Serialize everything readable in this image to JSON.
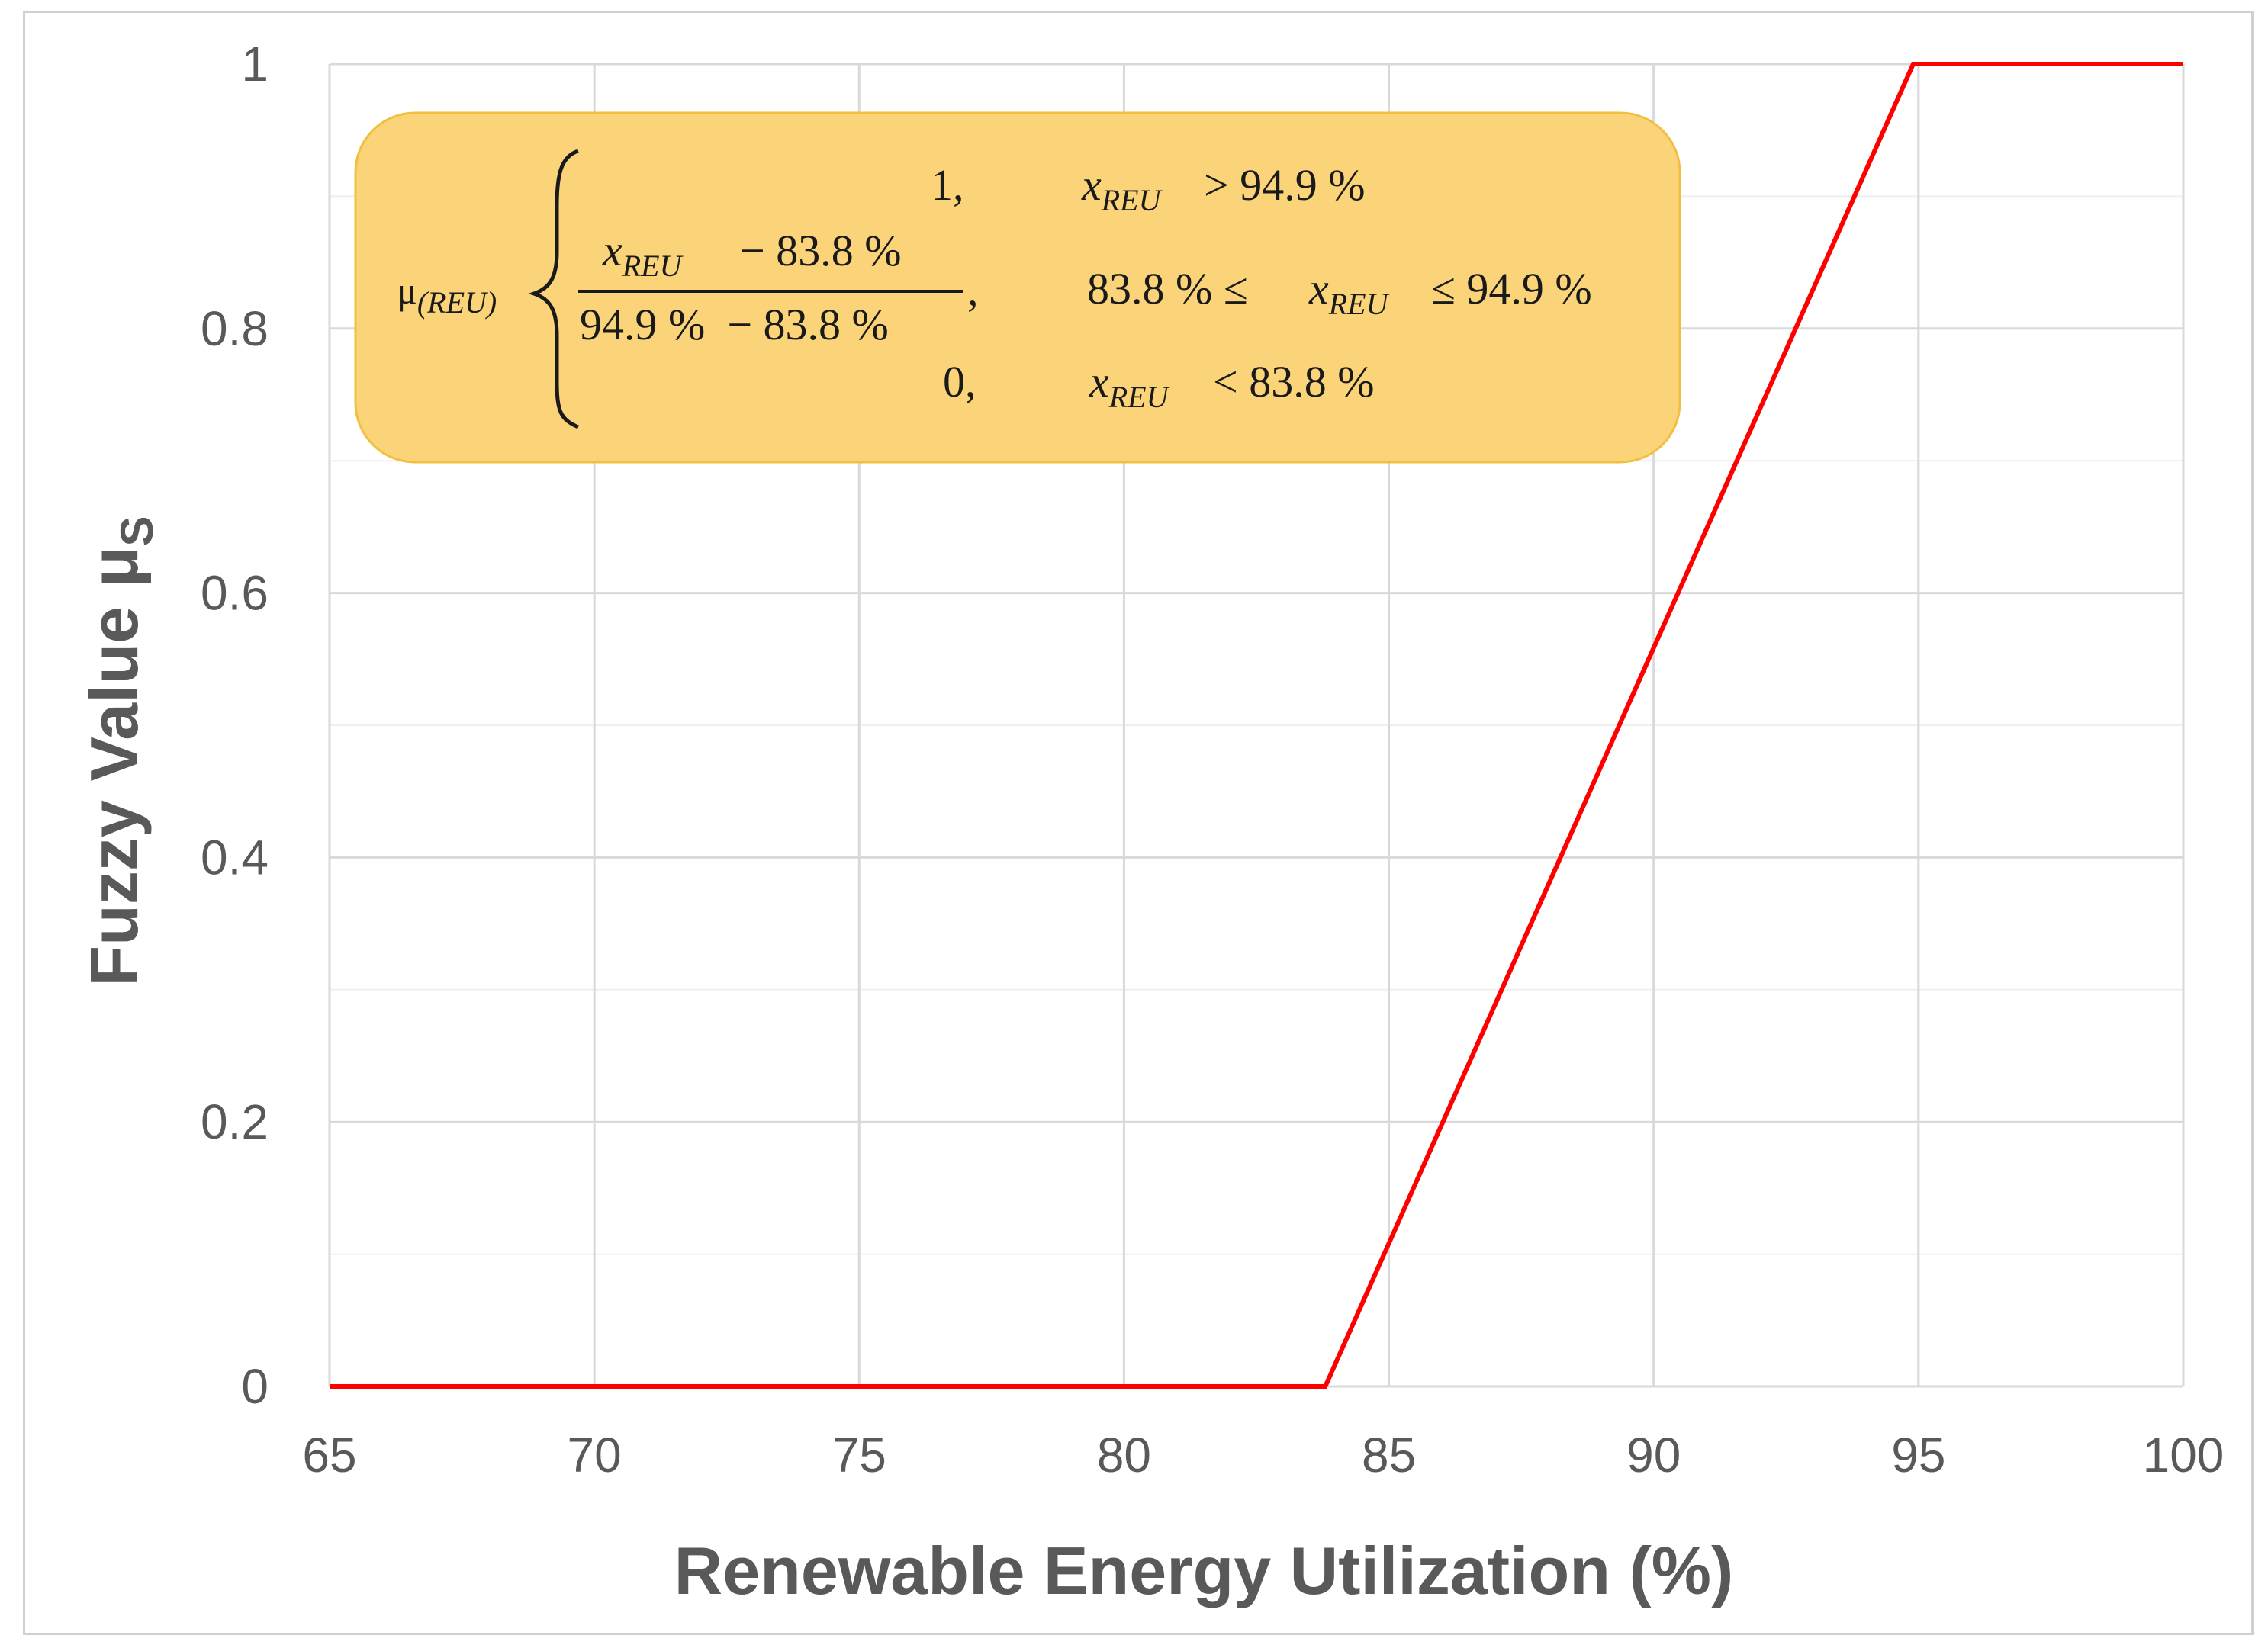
{
  "chart_data": {
    "type": "line",
    "title": "",
    "xlabel": "Renewable Energy Utilization (%)",
    "ylabel_main": "Fuzzy Value μ",
    "ylabel_sub": "S",
    "xlim": [
      65,
      100
    ],
    "ylim": [
      0,
      1
    ],
    "x_ticks": [
      65,
      70,
      75,
      80,
      85,
      90,
      95,
      100
    ],
    "y_ticks": [
      0,
      0.2,
      0.4,
      0.6,
      0.8,
      1
    ],
    "x_tick_labels": [
      "65",
      "70",
      "75",
      "80",
      "85",
      "90",
      "95",
      "100"
    ],
    "y_tick_labels": [
      "0",
      "0.2",
      "0.4",
      "0.6",
      "0.8",
      "1"
    ],
    "grid": true,
    "series": [
      {
        "name": "μ(REU)",
        "color": "#ff0000",
        "x": [
          65,
          83.8,
          94.9,
          100
        ],
        "y": [
          0,
          0,
          1,
          1
        ]
      }
    ],
    "annotation": {
      "fill_color": "#fbd47a",
      "mu_symbol": "μ",
      "mu_sub": "(REU)",
      "case1_value": "1,",
      "case1_var": "x",
      "case1_var_sub": "REU",
      "case1_cond": "> 94.9 %",
      "case2_num_var": "x",
      "case2_num_var_sub": "REU",
      "case2_num_rest": "− 83.8 %",
      "case2_den": "94.9 %  − 83.8 %",
      "case2_comma": ",",
      "case2_cond_left": "83.8 % ≤",
      "case2_var": "x",
      "case2_var_sub": "REU",
      "case2_cond_right": "≤ 94.9 %",
      "case3_value": "0,",
      "case3_var": "x",
      "case3_var_sub": "REU",
      "case3_cond": "< 83.8 %"
    }
  }
}
